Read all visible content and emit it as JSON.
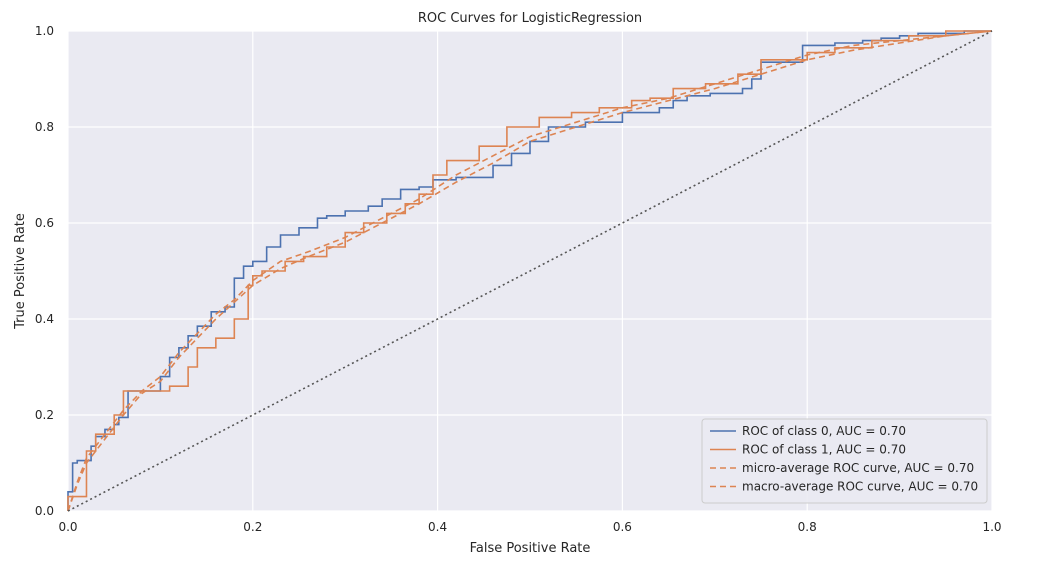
{
  "chart_data": {
    "type": "line",
    "title": "ROC Curves for LogisticRegression",
    "xlabel": "False Positive Rate",
    "ylabel": "True Positive Rate",
    "xlim": [
      0,
      1
    ],
    "ylim": [
      0,
      1
    ],
    "xticks": [
      "0.0",
      "0.2",
      "0.4",
      "0.6",
      "0.8",
      "1.0"
    ],
    "yticks": [
      "0.0",
      "0.2",
      "0.4",
      "0.6",
      "0.8",
      "1.0"
    ],
    "grid": true,
    "legend_position": "lower-right",
    "colors": {
      "background": "#eaeaf2",
      "grid": "#ffffff",
      "class0": "#4c72b0",
      "class1": "#dd8452",
      "micro": "#dd8452",
      "macro": "#dd8452",
      "diagonal": "#555555"
    },
    "series": [
      {
        "name": "ROC of class 0, AUC = 0.70",
        "style": "solid",
        "color_key": "class0",
        "x": [
          0,
          0,
          0.005,
          0.005,
          0.01,
          0.01,
          0.025,
          0.025,
          0.03,
          0.03,
          0.04,
          0.04,
          0.05,
          0.05,
          0.055,
          0.055,
          0.065,
          0.065,
          0.1,
          0.1,
          0.11,
          0.11,
          0.12,
          0.12,
          0.13,
          0.13,
          0.14,
          0.14,
          0.155,
          0.155,
          0.17,
          0.17,
          0.18,
          0.18,
          0.19,
          0.19,
          0.2,
          0.2,
          0.215,
          0.215,
          0.23,
          0.23,
          0.25,
          0.25,
          0.27,
          0.27,
          0.28,
          0.28,
          0.3,
          0.3,
          0.325,
          0.325,
          0.34,
          0.34,
          0.36,
          0.36,
          0.38,
          0.38,
          0.395,
          0.395,
          0.42,
          0.42,
          0.46,
          0.46,
          0.48,
          0.48,
          0.5,
          0.5,
          0.52,
          0.52,
          0.56,
          0.56,
          0.6,
          0.6,
          0.64,
          0.64,
          0.655,
          0.655,
          0.67,
          0.67,
          0.695,
          0.695,
          0.73,
          0.73,
          0.74,
          0.74,
          0.75,
          0.75,
          0.795,
          0.795,
          0.83,
          0.83,
          0.86,
          0.86,
          0.88,
          0.88,
          0.9,
          0.9,
          0.92,
          0.92,
          0.97,
          0.97,
          1
        ],
        "y": [
          0,
          0.04,
          0.04,
          0.1,
          0.1,
          0.105,
          0.105,
          0.135,
          0.135,
          0.155,
          0.155,
          0.17,
          0.17,
          0.18,
          0.18,
          0.195,
          0.195,
          0.25,
          0.25,
          0.28,
          0.28,
          0.32,
          0.32,
          0.34,
          0.34,
          0.365,
          0.365,
          0.385,
          0.385,
          0.415,
          0.415,
          0.425,
          0.425,
          0.485,
          0.485,
          0.51,
          0.51,
          0.52,
          0.52,
          0.55,
          0.55,
          0.575,
          0.575,
          0.59,
          0.59,
          0.61,
          0.61,
          0.615,
          0.615,
          0.625,
          0.625,
          0.635,
          0.635,
          0.65,
          0.65,
          0.67,
          0.67,
          0.675,
          0.675,
          0.69,
          0.69,
          0.695,
          0.695,
          0.72,
          0.72,
          0.745,
          0.745,
          0.77,
          0.77,
          0.8,
          0.8,
          0.81,
          0.81,
          0.83,
          0.83,
          0.84,
          0.84,
          0.855,
          0.855,
          0.865,
          0.865,
          0.87,
          0.87,
          0.88,
          0.88,
          0.9,
          0.9,
          0.935,
          0.935,
          0.97,
          0.97,
          0.975,
          0.975,
          0.98,
          0.98,
          0.985,
          0.985,
          0.99,
          0.99,
          0.995,
          0.995,
          1,
          1
        ]
      },
      {
        "name": "ROC of class 1, AUC = 0.70",
        "style": "solid",
        "color_key": "class1",
        "x": [
          0,
          0,
          0.02,
          0.02,
          0.03,
          0.03,
          0.05,
          0.05,
          0.06,
          0.06,
          0.11,
          0.11,
          0.13,
          0.13,
          0.14,
          0.14,
          0.16,
          0.16,
          0.18,
          0.18,
          0.195,
          0.195,
          0.2,
          0.2,
          0.21,
          0.21,
          0.235,
          0.235,
          0.255,
          0.255,
          0.28,
          0.28,
          0.3,
          0.3,
          0.32,
          0.32,
          0.345,
          0.345,
          0.365,
          0.365,
          0.38,
          0.38,
          0.395,
          0.395,
          0.41,
          0.41,
          0.445,
          0.445,
          0.475,
          0.475,
          0.51,
          0.51,
          0.545,
          0.545,
          0.575,
          0.575,
          0.61,
          0.61,
          0.63,
          0.63,
          0.655,
          0.655,
          0.69,
          0.69,
          0.725,
          0.725,
          0.75,
          0.75,
          0.8,
          0.8,
          0.83,
          0.83,
          0.87,
          0.87,
          0.91,
          0.91,
          0.95,
          0.95,
          1
        ],
        "y": [
          0,
          0.03,
          0.03,
          0.125,
          0.125,
          0.16,
          0.16,
          0.2,
          0.2,
          0.25,
          0.25,
          0.26,
          0.26,
          0.3,
          0.3,
          0.34,
          0.34,
          0.36,
          0.36,
          0.4,
          0.4,
          0.47,
          0.47,
          0.49,
          0.49,
          0.5,
          0.5,
          0.52,
          0.52,
          0.53,
          0.53,
          0.55,
          0.55,
          0.58,
          0.58,
          0.6,
          0.6,
          0.62,
          0.62,
          0.64,
          0.64,
          0.66,
          0.66,
          0.7,
          0.7,
          0.73,
          0.73,
          0.76,
          0.76,
          0.8,
          0.8,
          0.82,
          0.82,
          0.83,
          0.83,
          0.84,
          0.84,
          0.855,
          0.855,
          0.86,
          0.86,
          0.88,
          0.88,
          0.89,
          0.89,
          0.91,
          0.91,
          0.94,
          0.94,
          0.955,
          0.955,
          0.965,
          0.965,
          0.98,
          0.98,
          0.99,
          0.99,
          1,
          1
        ]
      },
      {
        "name": "micro-average ROC curve, AUC = 0.70",
        "style": "dashed",
        "color_key": "micro",
        "x": [
          0,
          0.01,
          0.02,
          0.04,
          0.06,
          0.08,
          0.1,
          0.12,
          0.14,
          0.16,
          0.18,
          0.2,
          0.23,
          0.26,
          0.3,
          0.34,
          0.38,
          0.42,
          0.46,
          0.5,
          0.55,
          0.6,
          0.65,
          0.7,
          0.75,
          0.8,
          0.85,
          0.9,
          0.95,
          1
        ],
        "y": [
          0,
          0.06,
          0.11,
          0.16,
          0.21,
          0.25,
          0.28,
          0.33,
          0.37,
          0.41,
          0.44,
          0.48,
          0.52,
          0.54,
          0.57,
          0.61,
          0.65,
          0.7,
          0.74,
          0.78,
          0.81,
          0.84,
          0.86,
          0.89,
          0.92,
          0.95,
          0.97,
          0.98,
          0.99,
          1
        ]
      },
      {
        "name": "macro-average ROC curve, AUC = 0.70",
        "style": "dashed",
        "color_key": "macro",
        "x": [
          0,
          0.01,
          0.02,
          0.04,
          0.06,
          0.08,
          0.1,
          0.12,
          0.14,
          0.16,
          0.18,
          0.2,
          0.23,
          0.26,
          0.3,
          0.34,
          0.38,
          0.42,
          0.46,
          0.5,
          0.55,
          0.6,
          0.65,
          0.7,
          0.75,
          0.8,
          0.85,
          0.9,
          0.95,
          1
        ],
        "y": [
          0,
          0.055,
          0.1,
          0.15,
          0.2,
          0.245,
          0.27,
          0.32,
          0.36,
          0.4,
          0.435,
          0.47,
          0.505,
          0.53,
          0.56,
          0.6,
          0.64,
          0.685,
          0.725,
          0.77,
          0.8,
          0.83,
          0.855,
          0.88,
          0.91,
          0.94,
          0.96,
          0.975,
          0.99,
          1
        ]
      },
      {
        "name": "",
        "style": "dotted",
        "color_key": "diagonal",
        "x": [
          0,
          1
        ],
        "y": [
          0,
          1
        ]
      }
    ]
  }
}
